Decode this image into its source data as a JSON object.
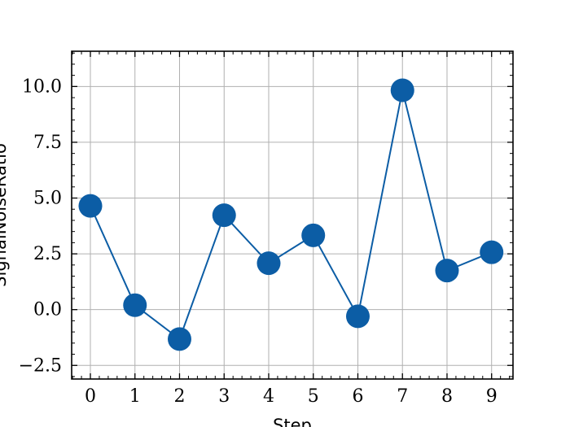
{
  "chart_data": {
    "type": "line",
    "title": "",
    "xlabel": "Step",
    "ylabel": "SignalNoiseRatio",
    "x": [
      0,
      1,
      2,
      3,
      4,
      5,
      6,
      7,
      8,
      9
    ],
    "series": [
      {
        "values": [
          4.65,
          0.2,
          -1.32,
          4.23,
          2.08,
          3.33,
          -0.3,
          9.83,
          1.75,
          2.57
        ],
        "color": "#0C5DA5",
        "marker": "circle"
      }
    ],
    "xticks": [
      0,
      1,
      2,
      3,
      4,
      5,
      6,
      7,
      8,
      9
    ],
    "xtick_labels": [
      "0",
      "1",
      "2",
      "3",
      "4",
      "5",
      "6",
      "7",
      "8",
      "9"
    ],
    "yticks": [
      -2.5,
      0.0,
      2.5,
      5.0,
      7.5,
      10.0
    ],
    "ytick_labels": [
      "−2.5",
      "0.0",
      "2.5",
      "5.0",
      "7.5",
      "10.0"
    ],
    "xlim": [
      -0.42,
      9.48
    ],
    "ylim": [
      -3.11,
      11.58
    ],
    "grid": true,
    "legend": "none"
  }
}
